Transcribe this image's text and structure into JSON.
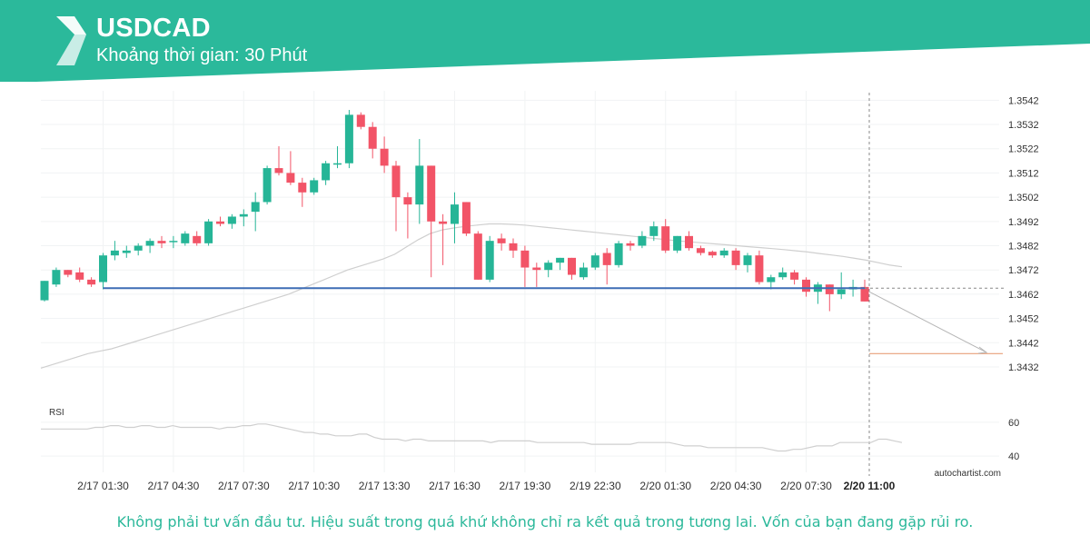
{
  "brand_color": "#2bb99b",
  "header": {
    "symbol": "USDCAD",
    "interval_text": "Khoảng thời gian: 30 Phút",
    "logo_icon": "autochartist-logo-icon"
  },
  "disclaimer": "Không phải tư vấn đầu tư. Hiệu suất trong quá khứ không chỉ ra kết quả trong tương lai. Vốn của bạn đang gặp rủi ro.",
  "chart_data": {
    "type": "candlestick",
    "symbol": "USDCAD",
    "ylim": [
      1.3426,
      1.3544
    ],
    "yticks": [
      1.3542,
      1.3532,
      1.3522,
      1.3512,
      1.3502,
      1.3492,
      1.3482,
      1.3472,
      1.3462,
      1.3452,
      1.3442,
      1.3432
    ],
    "ytick_labels": [
      "1.3542",
      "1.3532",
      "1.3522",
      "1.3512",
      "1.3502",
      "1.3492",
      "1.3482",
      "1.3472",
      "1.3462",
      "1.3452",
      "1.3442",
      "1.3432"
    ],
    "xtick_labels": [
      {
        "i": 5,
        "label": "2/17 01:30"
      },
      {
        "i": 11,
        "label": "2/17 04:30"
      },
      {
        "i": 17,
        "label": "2/17 07:30"
      },
      {
        "i": 23,
        "label": "2/17 10:30"
      },
      {
        "i": 29,
        "label": "2/17 13:30"
      },
      {
        "i": 35,
        "label": "2/17 16:30"
      },
      {
        "i": 41,
        "label": "2/17 19:30"
      },
      {
        "i": 47,
        "label": "2/19 22:30"
      },
      {
        "i": 53,
        "label": "2/20 01:30"
      },
      {
        "i": 59,
        "label": "2/20 04:30"
      },
      {
        "i": 65,
        "label": "2/20 07:30"
      }
    ],
    "current_time_label": "2/20 11:00",
    "bull_color": "#26b597",
    "bear_color": "#f25467",
    "ohlc": [
      [
        1.34595,
        1.34675,
        1.3459,
        1.34675
      ],
      [
        1.3466,
        1.3473,
        1.3465,
        1.3472
      ],
      [
        1.3472,
        1.3472,
        1.3469,
        1.347
      ],
      [
        1.3471,
        1.3473,
        1.3467,
        1.3468
      ],
      [
        1.3468,
        1.3469,
        1.3465,
        1.3466
      ],
      [
        1.3467,
        1.3479,
        1.3464,
        1.3478
      ],
      [
        1.3478,
        1.3484,
        1.3476,
        1.348
      ],
      [
        1.3479,
        1.3482,
        1.3477,
        1.348
      ],
      [
        1.348,
        1.3483,
        1.3478,
        1.3482
      ],
      [
        1.3482,
        1.3485,
        1.3479,
        1.3484
      ],
      [
        1.3484,
        1.3486,
        1.3481,
        1.3483
      ],
      [
        1.34835,
        1.3486,
        1.3481,
        1.3484
      ],
      [
        1.3483,
        1.3488,
        1.3482,
        1.3487
      ],
      [
        1.3486,
        1.3488,
        1.3482,
        1.3483
      ],
      [
        1.3483,
        1.3493,
        1.3482,
        1.3492
      ],
      [
        1.3492,
        1.3494,
        1.349,
        1.3491
      ],
      [
        1.3491,
        1.3495,
        1.3489,
        1.3494
      ],
      [
        1.3494,
        1.3497,
        1.349,
        1.3495
      ],
      [
        1.3496,
        1.3504,
        1.3488,
        1.35
      ],
      [
        1.35,
        1.3515,
        1.3499,
        1.3514
      ],
      [
        1.3514,
        1.3523,
        1.3511,
        1.3512
      ],
      [
        1.3512,
        1.3521,
        1.3507,
        1.3508
      ],
      [
        1.3508,
        1.351,
        1.3498,
        1.3504
      ],
      [
        1.3504,
        1.351,
        1.3503,
        1.3509
      ],
      [
        1.3509,
        1.3517,
        1.3507,
        1.3516
      ],
      [
        1.3516,
        1.3523,
        1.3514,
        1.3516
      ],
      [
        1.3516,
        1.3538,
        1.3514,
        1.3536
      ],
      [
        1.3536,
        1.3537,
        1.353,
        1.3531
      ],
      [
        1.3531,
        1.3533,
        1.3518,
        1.3522
      ],
      [
        1.3522,
        1.3527,
        1.3512,
        1.3515
      ],
      [
        1.3515,
        1.3517,
        1.3488,
        1.3502
      ],
      [
        1.3502,
        1.3504,
        1.3485,
        1.3499
      ],
      [
        1.3499,
        1.3526,
        1.3491,
        1.3515
      ],
      [
        1.3515,
        1.3515,
        1.3469,
        1.3492
      ],
      [
        1.3492,
        1.3495,
        1.3474,
        1.3491
      ],
      [
        1.3491,
        1.3504,
        1.3483,
        1.3499
      ],
      [
        1.35,
        1.35,
        1.3486,
        1.3487
      ],
      [
        1.3487,
        1.3488,
        1.3468,
        1.3468
      ],
      [
        1.3468,
        1.3486,
        1.3467,
        1.3484
      ],
      [
        1.3485,
        1.3487,
        1.348,
        1.3483
      ],
      [
        1.3483,
        1.3485,
        1.3477,
        1.348
      ],
      [
        1.348,
        1.3482,
        1.3465,
        1.3473
      ],
      [
        1.3473,
        1.3475,
        1.3465,
        1.3472
      ],
      [
        1.3472,
        1.3476,
        1.3469,
        1.3475
      ],
      [
        1.3475,
        1.3477,
        1.3472,
        1.3477
      ],
      [
        1.3477,
        1.3477,
        1.3468,
        1.347
      ],
      [
        1.3469,
        1.3475,
        1.3468,
        1.3473
      ],
      [
        1.3473,
        1.3479,
        1.3472,
        1.3478
      ],
      [
        1.3479,
        1.3481,
        1.3466,
        1.3474
      ],
      [
        1.3474,
        1.3484,
        1.3473,
        1.3483
      ],
      [
        1.3483,
        1.3484,
        1.348,
        1.3482
      ],
      [
        1.3482,
        1.3488,
        1.3481,
        1.3486
      ],
      [
        1.3486,
        1.3492,
        1.3484,
        1.349
      ],
      [
        1.349,
        1.3493,
        1.3479,
        1.348
      ],
      [
        1.348,
        1.3486,
        1.3479,
        1.3486
      ],
      [
        1.3486,
        1.3488,
        1.348,
        1.3481
      ],
      [
        1.3481,
        1.3482,
        1.3478,
        1.3479
      ],
      [
        1.34795,
        1.348,
        1.3477,
        1.3478
      ],
      [
        1.3478,
        1.3481,
        1.3477,
        1.348
      ],
      [
        1.348,
        1.3481,
        1.3472,
        1.3474
      ],
      [
        1.3474,
        1.3479,
        1.3471,
        1.3478
      ],
      [
        1.3478,
        1.348,
        1.3466,
        1.3467
      ],
      [
        1.3467,
        1.347,
        1.3464,
        1.3469
      ],
      [
        1.3469,
        1.3473,
        1.3468,
        1.3471
      ],
      [
        1.3471,
        1.3472,
        1.3466,
        1.3468
      ],
      [
        1.3468,
        1.3469,
        1.3461,
        1.3463
      ],
      [
        1.3463,
        1.3467,
        1.3458,
        1.3466
      ],
      [
        1.3466,
        1.3466,
        1.3455,
        1.3462
      ],
      [
        1.3462,
        1.3471,
        1.346,
        1.3464
      ],
      [
        1.3464,
        1.3468,
        1.3461,
        1.3465
      ],
      [
        1.3465,
        1.3468,
        1.3459,
        1.3459
      ]
    ],
    "moving_average": {
      "start_index": 0,
      "values": [
        1.34315,
        1.3433,
        1.34345,
        1.3436,
        1.34375,
        1.34385,
        1.34395,
        1.3441,
        1.34425,
        1.3444,
        1.34455,
        1.3447,
        1.34485,
        1.345,
        1.34515,
        1.3453,
        1.34545,
        1.3456,
        1.34575,
        1.3459,
        1.34605,
        1.3462,
        1.3464,
        1.3466,
        1.3468,
        1.347,
        1.3472,
        1.34735,
        1.3475,
        1.34765,
        1.34785,
        1.34815,
        1.34845,
        1.3487,
        1.34885,
        1.34893,
        1.349,
        1.34905,
        1.3491,
        1.3491,
        1.34908,
        1.34905,
        1.349,
        1.34895,
        1.3489,
        1.34885,
        1.3488,
        1.34875,
        1.3487,
        1.34865,
        1.3486,
        1.34855,
        1.3485,
        1.34845,
        1.3484,
        1.34836,
        1.34832,
        1.34828,
        1.34824,
        1.3482,
        1.34816,
        1.34812,
        1.34808,
        1.34804,
        1.34799,
        1.34794,
        1.34788,
        1.34782,
        1.34776,
        1.34768,
        1.3476,
        1.3475,
        1.3474,
        1.34733
      ]
    },
    "support_level": 1.34645,
    "target_level": 1.34375,
    "projection": {
      "from_index": 70,
      "from_value": 1.3463,
      "to_index": 77,
      "to_value": 1.3438
    },
    "rsi": {
      "label": "RSI",
      "yticks": [
        60,
        40
      ],
      "ylim": [
        32,
        68
      ],
      "values": [
        56,
        56,
        56,
        56,
        56,
        56,
        56,
        57,
        57,
        58,
        58,
        57,
        57,
        58,
        58,
        57,
        57,
        58,
        57,
        57,
        57,
        57,
        57,
        56,
        57,
        57,
        58,
        58,
        59,
        59,
        58,
        57,
        56,
        55,
        54,
        54,
        53,
        53,
        52,
        52,
        52,
        53,
        53,
        51,
        50,
        50,
        50,
        49,
        50,
        50,
        49,
        49,
        49,
        49,
        49,
        49,
        49,
        49,
        48,
        49,
        49,
        49,
        49,
        49,
        48,
        48,
        48,
        48,
        48,
        48,
        48,
        47,
        47,
        47,
        47,
        47,
        47,
        48,
        48,
        48,
        48,
        48,
        47,
        46,
        46,
        46,
        45,
        45,
        45,
        45,
        45,
        45,
        45,
        45,
        44,
        43,
        43,
        44,
        44,
        45,
        46,
        46,
        46,
        48,
        48,
        48,
        48,
        48,
        50,
        50,
        49,
        48
      ]
    },
    "watermark": "autochartist.com"
  }
}
